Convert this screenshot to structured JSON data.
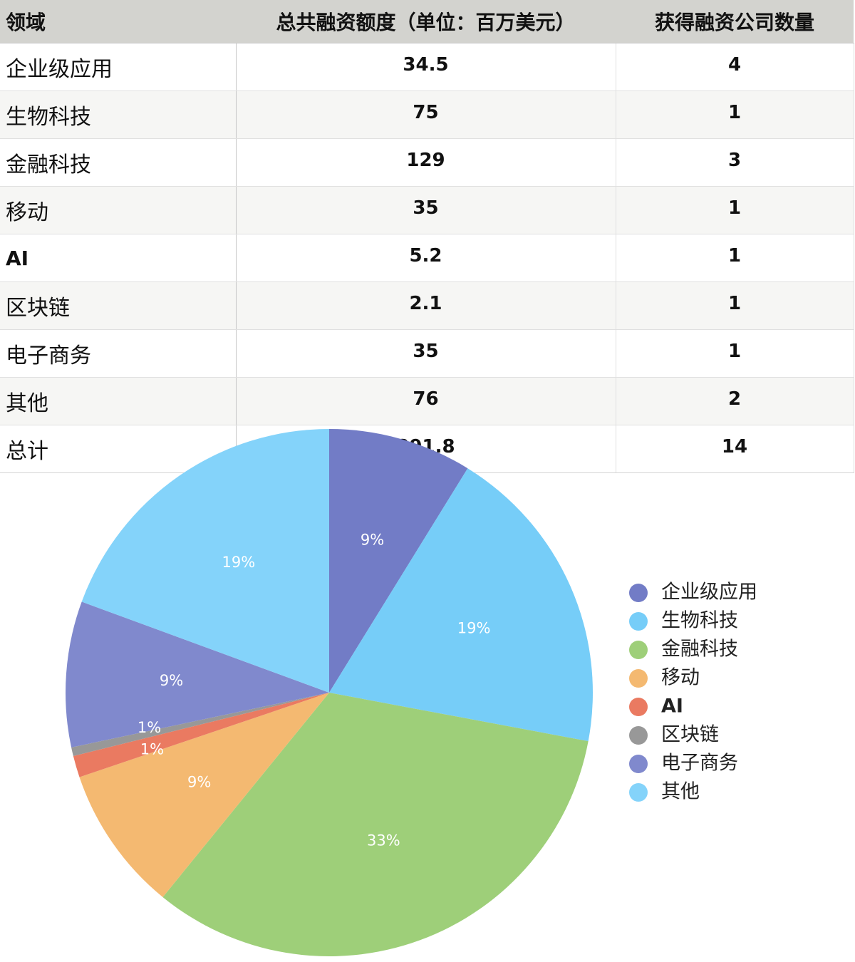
{
  "chart_data": {
    "type": "table",
    "header": {
      "field": "领域",
      "total_funding": "总共融资额度（单位：百万美元）",
      "companies": "获得融资公司数量"
    },
    "rows": [
      {
        "field": "企业级应用",
        "total_funding": "34.5",
        "companies": "4"
      },
      {
        "field": "生物科技",
        "total_funding": "75",
        "companies": "1"
      },
      {
        "field": "金融科技",
        "total_funding": "129",
        "companies": "3"
      },
      {
        "field": "移动",
        "total_funding": "35",
        "companies": "1"
      },
      {
        "field": "AI",
        "total_funding": "5.2",
        "companies": "1"
      },
      {
        "field": "区块链",
        "total_funding": "2.1",
        "companies": "1"
      },
      {
        "field": "电子商务",
        "total_funding": "35",
        "companies": "1"
      },
      {
        "field": "其他",
        "total_funding": "76",
        "companies": "2"
      }
    ],
    "total": {
      "field": "总计",
      "total_funding": "391.8",
      "companies": "14"
    },
    "pie": {
      "type": "pie",
      "categories": [
        "企业级应用",
        "生物科技",
        "金融科技",
        "移动",
        "AI",
        "区块链",
        "电子商务",
        "其他"
      ],
      "values": [
        34.5,
        75,
        129,
        35,
        5.2,
        2.1,
        35,
        76
      ],
      "labels": [
        "9%",
        "19%",
        "33%",
        "9%",
        "1%",
        "1%",
        "9%",
        "19%"
      ],
      "colors": [
        "#727cc6",
        "#76cdf8",
        "#9ecf79",
        "#f4b971",
        "#ea7a61",
        "#989898",
        "#8089cd",
        "#84d3fa"
      ],
      "legend_position": "right"
    }
  }
}
